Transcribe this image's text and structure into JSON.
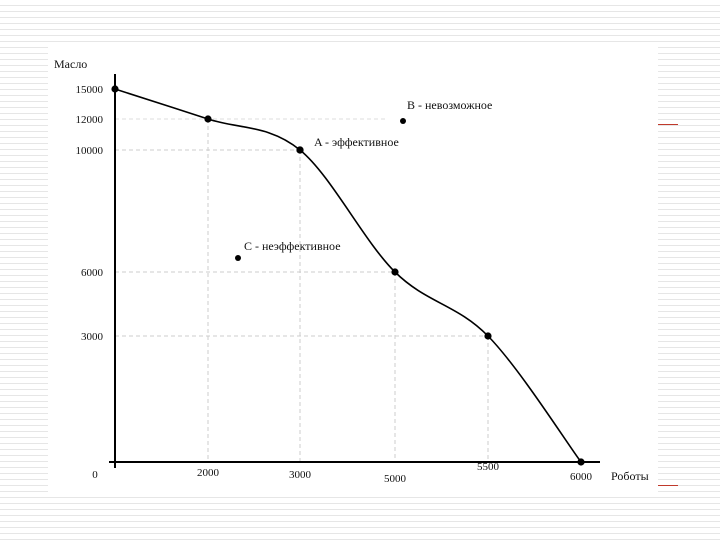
{
  "slide": {
    "accent_color": "#c0392b",
    "background_line_color": "#e6e6e6"
  },
  "chart_data": {
    "type": "line",
    "title": "",
    "xlabel": "Роботы",
    "ylabel": "Масло",
    "origin_label": "0",
    "x_ticks": [
      2000,
      3000,
      5000,
      5500,
      6000
    ],
    "y_ticks": [
      15000,
      12000,
      10000,
      6000,
      3000
    ],
    "series": [
      {
        "values": [
          {
            "x": 0,
            "y": 15000
          },
          {
            "x": 2000,
            "y": 12000
          },
          {
            "x": 3000,
            "y": 10000
          },
          {
            "x": 5000,
            "y": 6000
          },
          {
            "x": 5500,
            "y": 3000
          },
          {
            "x": 6000,
            "y": 0
          }
        ]
      }
    ],
    "annotations": [
      {
        "label": "A - эффективное",
        "x": 3000,
        "y": 10000
      },
      {
        "label": "В - невозможное",
        "x": 5000,
        "y": 12000
      },
      {
        "label": "С - неэффективное",
        "x": 2500,
        "y": 6200
      }
    ],
    "grid": "dashed guide lines at marked points",
    "line_color": "#000000",
    "grid_color": "#cccccc"
  }
}
